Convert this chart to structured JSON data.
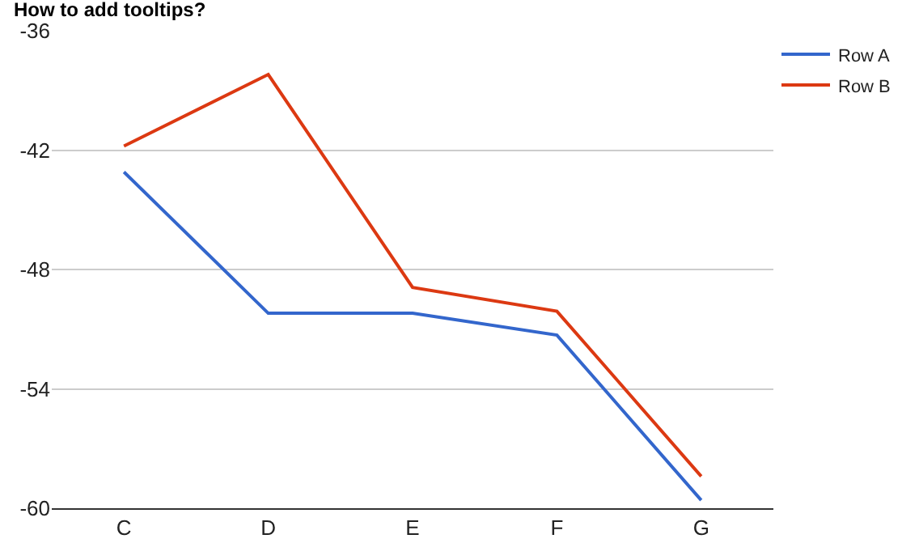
{
  "chart_data": {
    "type": "line",
    "title": "How to add tooltips?",
    "categories": [
      "C",
      "D",
      "E",
      "F",
      "G"
    ],
    "series": [
      {
        "name": "Row A",
        "color": "#3366cc",
        "values": [
          -43.1,
          -50.2,
          -50.2,
          -51.3,
          -59.6
        ]
      },
      {
        "name": "Row B",
        "color": "#dc3912",
        "values": [
          -41.8,
          -38.2,
          -48.9,
          -50.1,
          -58.4
        ]
      }
    ],
    "ylim": [
      -60,
      -36
    ],
    "yticks": [
      -36,
      -42,
      -48,
      -54,
      -60
    ],
    "grid": "y",
    "legend": "top right",
    "marker": "none",
    "line_style": "solid"
  }
}
